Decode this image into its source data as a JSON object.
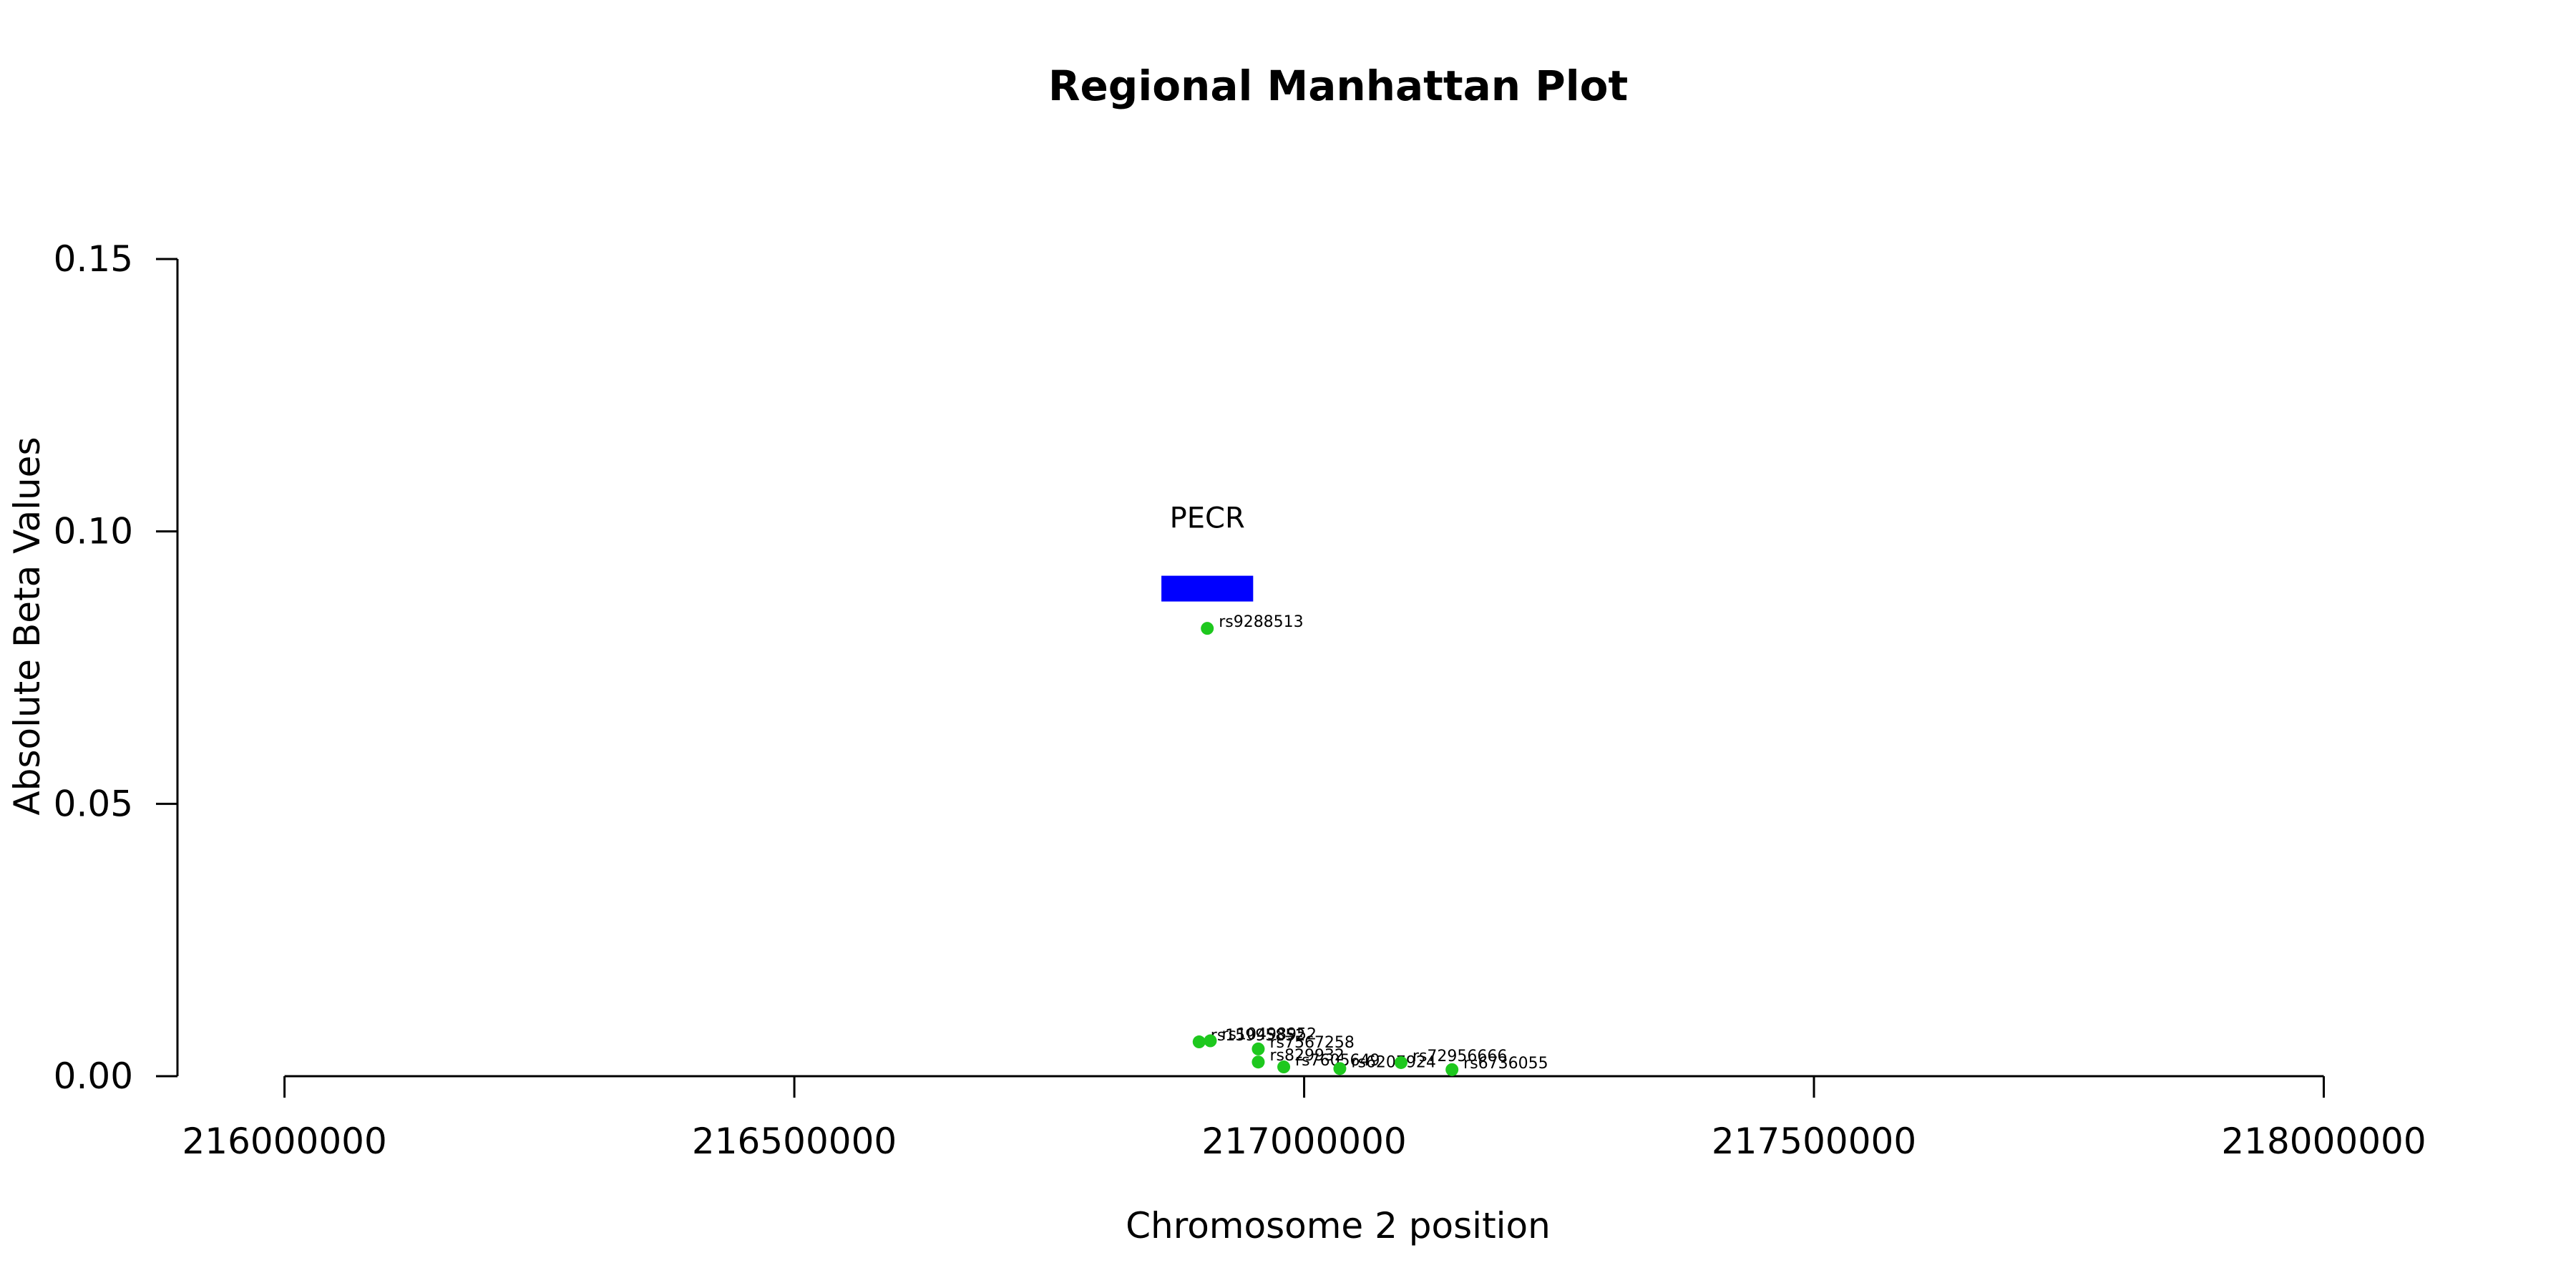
{
  "chart_data": {
    "type": "scatter",
    "title": "Regional Manhattan Plot",
    "xlabel": "Chromosome 2 position",
    "ylabel": "Absolute Beta Values",
    "xlim": [
      215895000,
      218100000
    ],
    "ylim": [
      0,
      0.15
    ],
    "x_ticks": [
      216000000,
      216500000,
      217000000,
      217500000,
      218000000
    ],
    "y_ticks": [
      0.0,
      0.05,
      0.1,
      0.15
    ],
    "y_tick_labels": [
      "0.00",
      "0.05",
      "0.10",
      "0.15"
    ],
    "grid": false,
    "legend": "none",
    "point_color": "#1ec81e",
    "gene_color": "#0000ff",
    "gene": {
      "name": "PECR",
      "start": 216860000,
      "end": 216950000,
      "y": 0.0895
    },
    "points": [
      {
        "label": "rs9288513",
        "x": 216905000,
        "y": 0.0822
      },
      {
        "label": "rs15995852",
        "x": 216897000,
        "y": 0.0063
      },
      {
        "label": "rs10498952",
        "x": 216908000,
        "y": 0.0065
      },
      {
        "label": "rs7567258",
        "x": 216955000,
        "y": 0.005
      },
      {
        "label": "rs829932",
        "x": 216955000,
        "y": 0.0026
      },
      {
        "label": "rs7605649",
        "x": 216980000,
        "y": 0.0017
      },
      {
        "label": "rs6207924",
        "x": 217035000,
        "y": 0.0014
      },
      {
        "label": "rs72956666",
        "x": 217095000,
        "y": 0.0025
      },
      {
        "label": "rs6736055",
        "x": 217145000,
        "y": 0.0012
      }
    ]
  }
}
